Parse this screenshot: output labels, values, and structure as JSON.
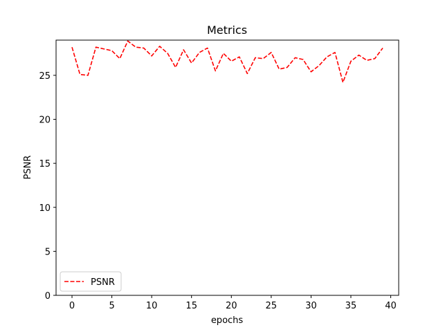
{
  "chart_data": {
    "type": "line",
    "title": "Metrics",
    "xlabel": "epochs",
    "ylabel": "PSNR",
    "xlim": [
      -2,
      41
    ],
    "ylim": [
      0,
      29
    ],
    "xticks": [
      0,
      5,
      10,
      15,
      20,
      25,
      30,
      35,
      40
    ],
    "yticks": [
      0,
      5,
      10,
      15,
      20,
      25
    ],
    "grid": false,
    "legend_position": "lower-left",
    "series": [
      {
        "name": "PSNR",
        "color": "#ff0000",
        "line_style": "dashed",
        "x": [
          0,
          1,
          2,
          3,
          4,
          5,
          6,
          7,
          8,
          9,
          10,
          11,
          12,
          13,
          14,
          15,
          16,
          17,
          18,
          19,
          20,
          21,
          22,
          23,
          24,
          25,
          26,
          27,
          28,
          29,
          30,
          31,
          32,
          33,
          34,
          35,
          36,
          37,
          38,
          39
        ],
        "y": [
          28.2,
          25.1,
          25.0,
          28.2,
          28.0,
          27.8,
          26.9,
          28.9,
          28.2,
          28.1,
          27.2,
          28.3,
          27.5,
          25.9,
          27.9,
          26.4,
          27.6,
          28.1,
          25.5,
          27.5,
          26.6,
          27.1,
          25.2,
          27.0,
          26.9,
          27.6,
          25.7,
          25.9,
          27.0,
          26.8,
          25.4,
          26.1,
          27.1,
          27.6,
          24.2,
          26.6,
          27.3,
          26.7,
          26.9,
          28.1
        ]
      }
    ]
  }
}
